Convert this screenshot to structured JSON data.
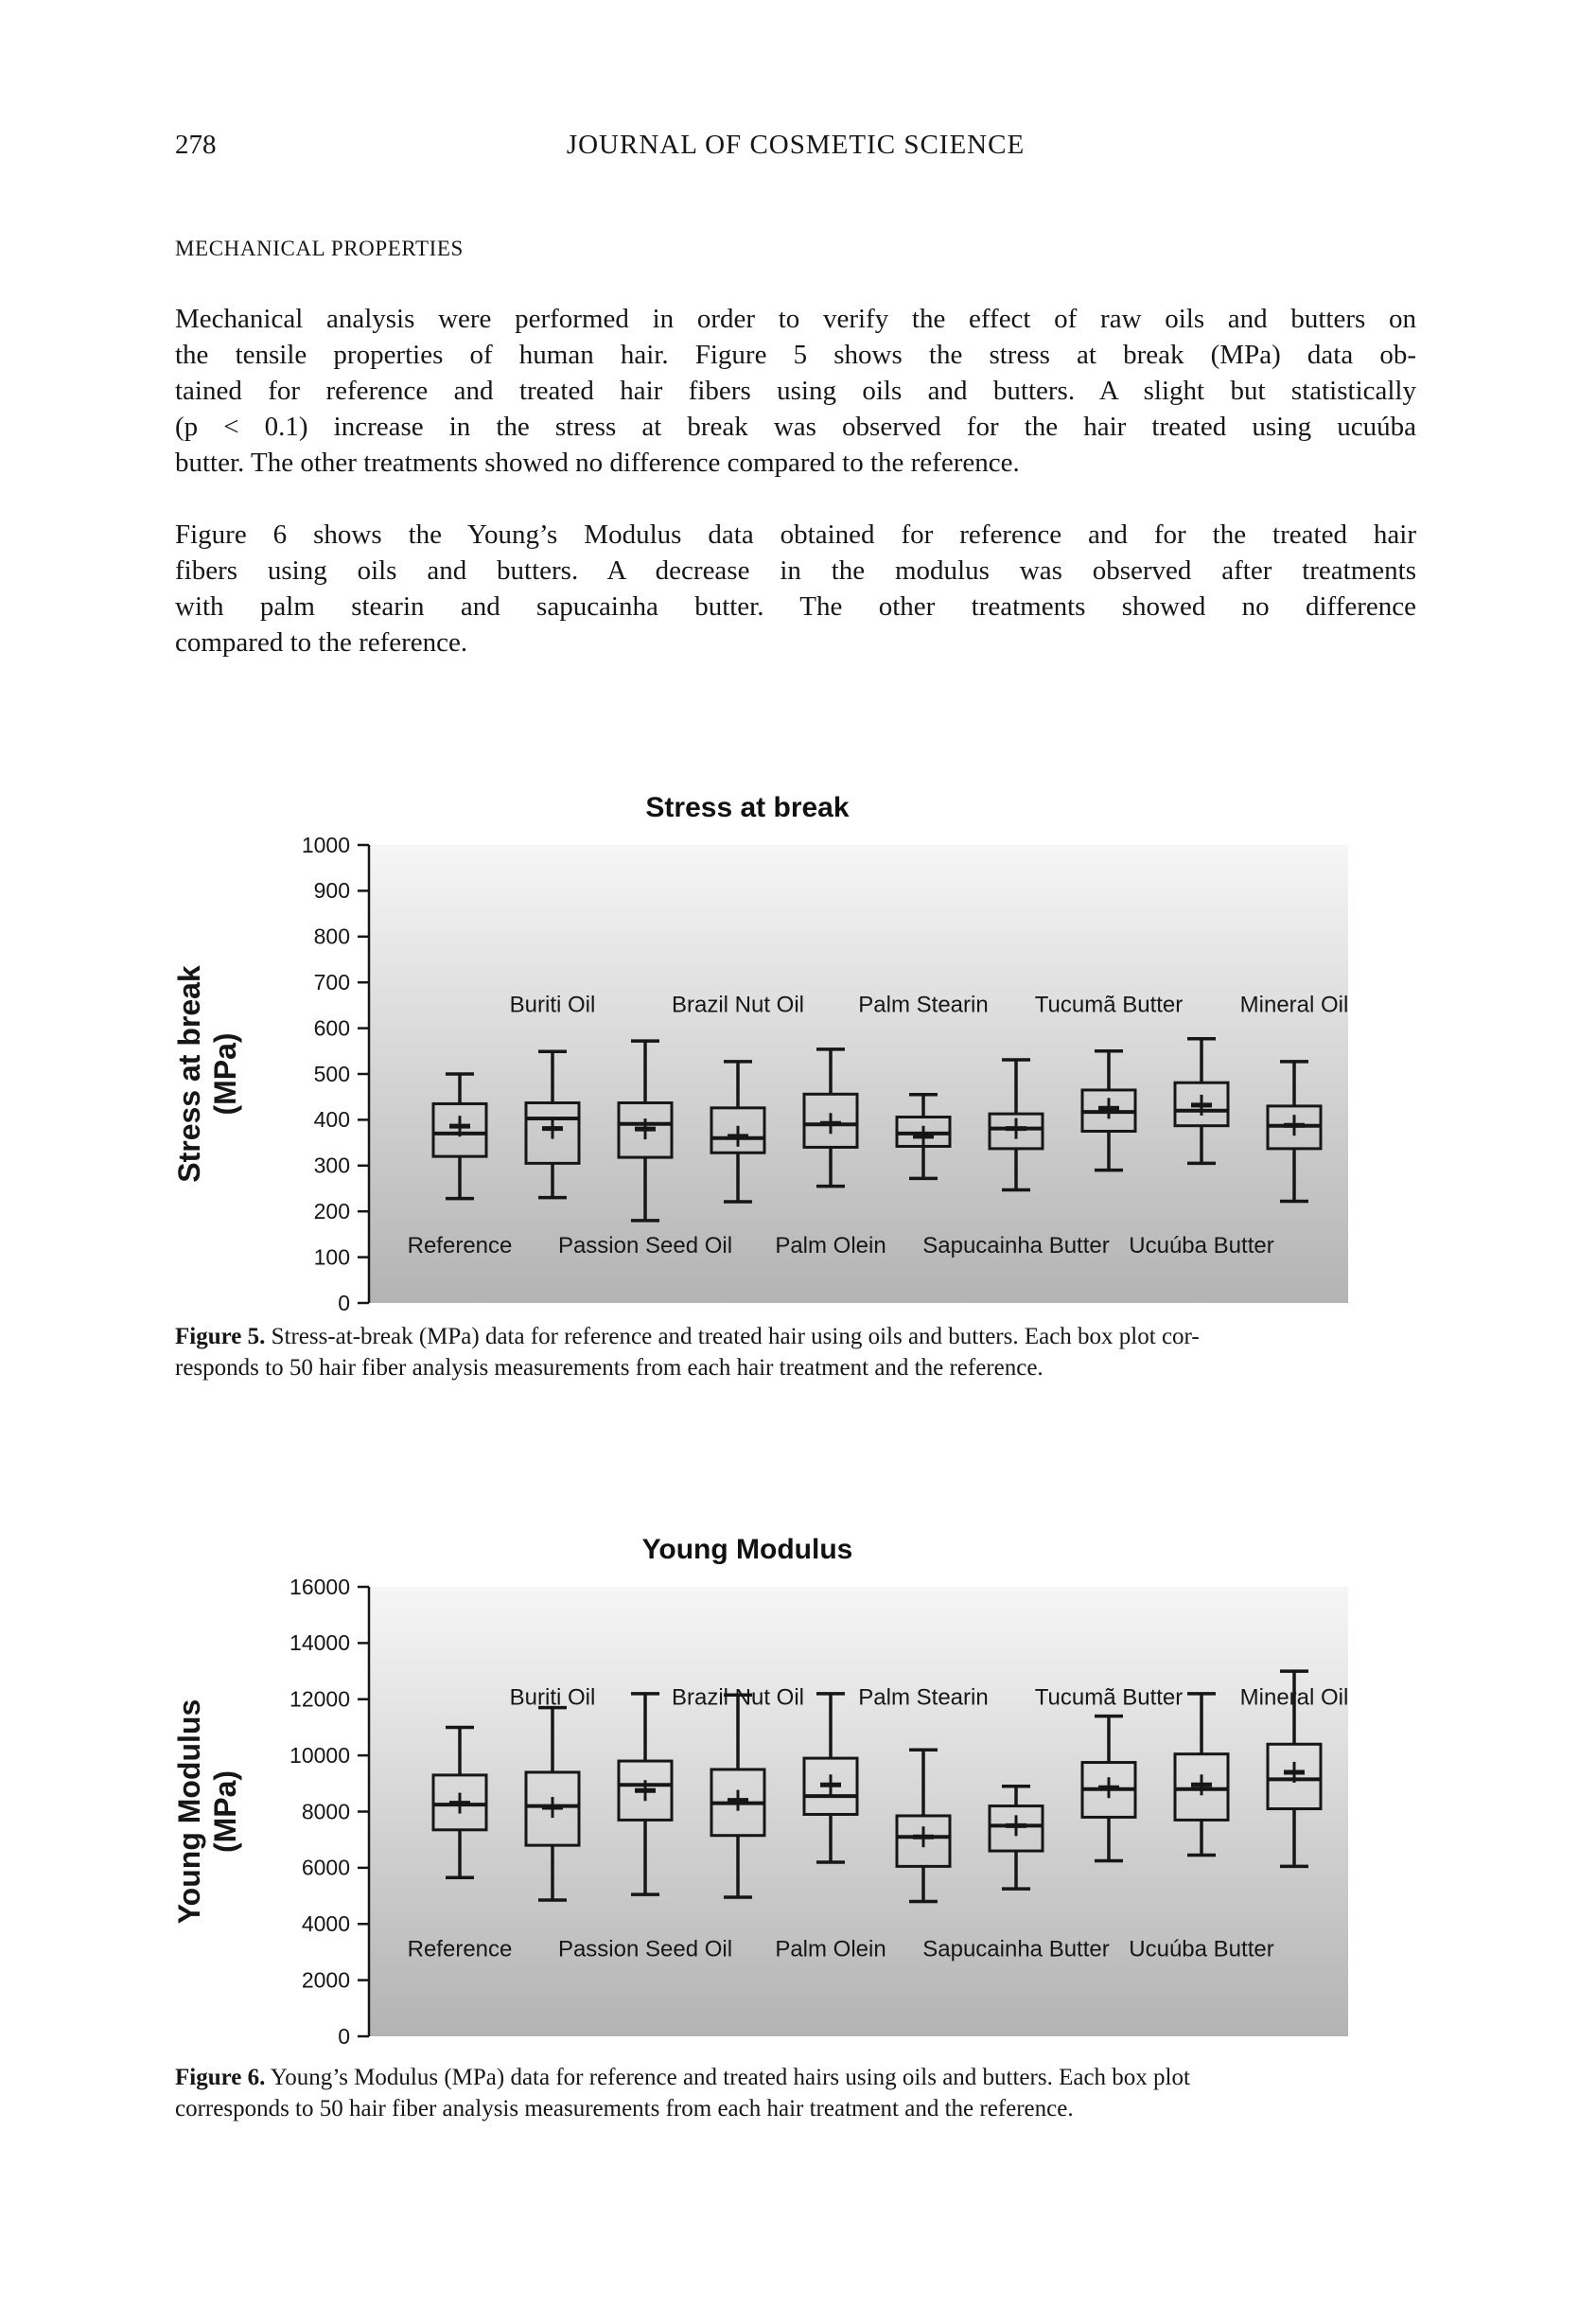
{
  "page": {
    "number": "278",
    "journal_title": "JOURNAL OF COSMETIC SCIENCE",
    "section_heading": "MECHANICAL PROPERTIES",
    "paragraphs": [
      {
        "lines": [
          "Mechanical analysis were performed in order to verify the effect of raw oils and butters on",
          "the tensile properties of human hair. Figure 5 shows the stress at break (MPa) data ob-",
          "tained for reference and treated hair fibers using oils and butters. A slight but statistically",
          "(p < 0.1) increase in the stress at break was observed for the hair treated using ucuúba",
          "butter. The other treatments showed no difference compared to the reference."
        ]
      },
      {
        "lines": [
          "Figure 6 shows the Young’s Modulus data obtained for reference and for the treated hair",
          "fibers using oils and butters. A decrease in the modulus was observed after treatments",
          "with palm stearin and sapucainha butter. The other treatments showed no difference",
          "compared to the reference."
        ]
      }
    ]
  },
  "figures": [
    {
      "caption_label": "Figure 5.",
      "caption_text": " Stress-at-break (MPa) data for reference and treated hair using oils and butters. Each box plot cor-\nresponds to 50 hair fiber analysis measurements from each hair treatment and the reference."
    },
    {
      "caption_label": "Figure 6.",
      "caption_text": " Young’s Modulus (MPa) data for reference and treated hairs using oils and butters. Each box plot\ncorresponds to 50 hair fiber analysis measurements from each hair treatment and the reference."
    }
  ],
  "chart_data": [
    {
      "type": "boxplot",
      "title": "Stress at break",
      "ylabel_lines": [
        "Stress at break",
        "(MPa)"
      ],
      "ylabel": "Stress at break (MPa)",
      "xlabel": "",
      "ylim": [
        0,
        1000
      ],
      "ytick_step": 100,
      "grid": false,
      "legend": "none",
      "bg_gradient": [
        "#f6f6f6",
        "#b3b3b3"
      ],
      "line_color": "#161616",
      "label_levels": {
        "top": 635,
        "bottom": 110
      },
      "categories": [
        "Reference",
        "Buriti Oil",
        "Passion Seed Oil",
        "Brazil Nut Oil",
        "Palm Olein",
        "Palm Stearin",
        "Sapucainha Butter",
        "Tucumã Butter",
        "Ucuúba Butter",
        "Mineral Oil"
      ],
      "series": [
        {
          "name": "Reference",
          "row": "bottom",
          "low": 228,
          "q1": 320,
          "median": 370,
          "q3": 435,
          "high": 500,
          "mean": 386
        },
        {
          "name": "Buriti Oil",
          "row": "top",
          "low": 230,
          "q1": 305,
          "median": 403,
          "q3": 437,
          "high": 549,
          "mean": 381
        },
        {
          "name": "Passion Seed Oil",
          "row": "bottom",
          "low": 180,
          "q1": 318,
          "median": 391,
          "q3": 437,
          "high": 572,
          "mean": 380
        },
        {
          "name": "Brazil Nut Oil",
          "row": "top",
          "low": 221,
          "q1": 328,
          "median": 360,
          "q3": 426,
          "high": 527,
          "mean": 364
        },
        {
          "name": "Palm Olein",
          "row": "bottom",
          "low": 255,
          "q1": 340,
          "median": 390,
          "q3": 456,
          "high": 554,
          "mean": 392
        },
        {
          "name": "Palm Stearin",
          "row": "top",
          "low": 272,
          "q1": 342,
          "median": 370,
          "q3": 406,
          "high": 455,
          "mean": 364
        },
        {
          "name": "Sapucainha Butter",
          "row": "bottom",
          "low": 247,
          "q1": 337,
          "median": 381,
          "q3": 413,
          "high": 531,
          "mean": 381
        },
        {
          "name": "Tucumã Butter",
          "row": "top",
          "low": 290,
          "q1": 375,
          "median": 417,
          "q3": 465,
          "high": 550,
          "mean": 425
        },
        {
          "name": "Ucuúba Butter",
          "row": "bottom",
          "low": 305,
          "q1": 387,
          "median": 420,
          "q3": 481,
          "high": 577,
          "mean": 432
        },
        {
          "name": "Mineral Oil",
          "row": "top",
          "low": 222,
          "q1": 337,
          "median": 387,
          "q3": 430,
          "high": 527,
          "mean": 388
        }
      ]
    },
    {
      "type": "boxplot",
      "title": "Young Modulus",
      "ylabel_lines": [
        "Young Modulus",
        "(MPa)"
      ],
      "ylabel": "Young Modulus (MPa)",
      "xlabel": "",
      "ylim": [
        0,
        16000
      ],
      "ytick_step": 2000,
      "grid": false,
      "legend": "none",
      "bg_gradient": [
        "#f6f6f6",
        "#b3b3b3"
      ],
      "line_color": "#161616",
      "label_levels": {
        "top": 11800,
        "bottom": 2850
      },
      "categories": [
        "Reference",
        "Buriti Oil",
        "Passion Seed Oil",
        "Brazil Nut Oil",
        "Palm Olein",
        "Palm Stearin",
        "Sapucainha Butter",
        "Tucumã Butter",
        "Ucuúba Butter",
        "Mineral Oil"
      ],
      "series": [
        {
          "name": "Reference",
          "row": "bottom",
          "low": 5650,
          "q1": 7350,
          "median": 8250,
          "q3": 9300,
          "high": 11000,
          "mean": 8300
        },
        {
          "name": "Buriti Oil",
          "row": "top",
          "low": 4850,
          "q1": 6800,
          "median": 8200,
          "q3": 9400,
          "high": 11700,
          "mean": 8150
        },
        {
          "name": "Passion Seed Oil",
          "row": "bottom",
          "low": 5050,
          "q1": 7700,
          "median": 8950,
          "q3": 9800,
          "high": 12200,
          "mean": 8750
        },
        {
          "name": "Brazil Nut Oil",
          "row": "top",
          "low": 4950,
          "q1": 7150,
          "median": 8300,
          "q3": 9500,
          "high": 12150,
          "mean": 8400
        },
        {
          "name": "Palm Olein",
          "row": "bottom",
          "low": 6200,
          "q1": 7900,
          "median": 8550,
          "q3": 9900,
          "high": 12200,
          "mean": 8950
        },
        {
          "name": "Palm Stearin",
          "row": "top",
          "low": 4800,
          "q1": 6050,
          "median": 7100,
          "q3": 7850,
          "high": 10200,
          "mean": 7100
        },
        {
          "name": "Sapucainha Butter",
          "row": "bottom",
          "low": 5250,
          "q1": 6600,
          "median": 7500,
          "q3": 8200,
          "high": 8900,
          "mean": 7500
        },
        {
          "name": "Tucumã Butter",
          "row": "top",
          "low": 6250,
          "q1": 7800,
          "median": 8800,
          "q3": 9750,
          "high": 11400,
          "mean": 8850
        },
        {
          "name": "Ucuúba Butter",
          "row": "bottom",
          "low": 6450,
          "q1": 7700,
          "median": 8800,
          "q3": 10050,
          "high": 12200,
          "mean": 8950
        },
        {
          "name": "Mineral Oil",
          "row": "top",
          "low": 6050,
          "q1": 8100,
          "median": 9150,
          "q3": 10400,
          "high": 13000,
          "mean": 9400
        }
      ]
    }
  ]
}
